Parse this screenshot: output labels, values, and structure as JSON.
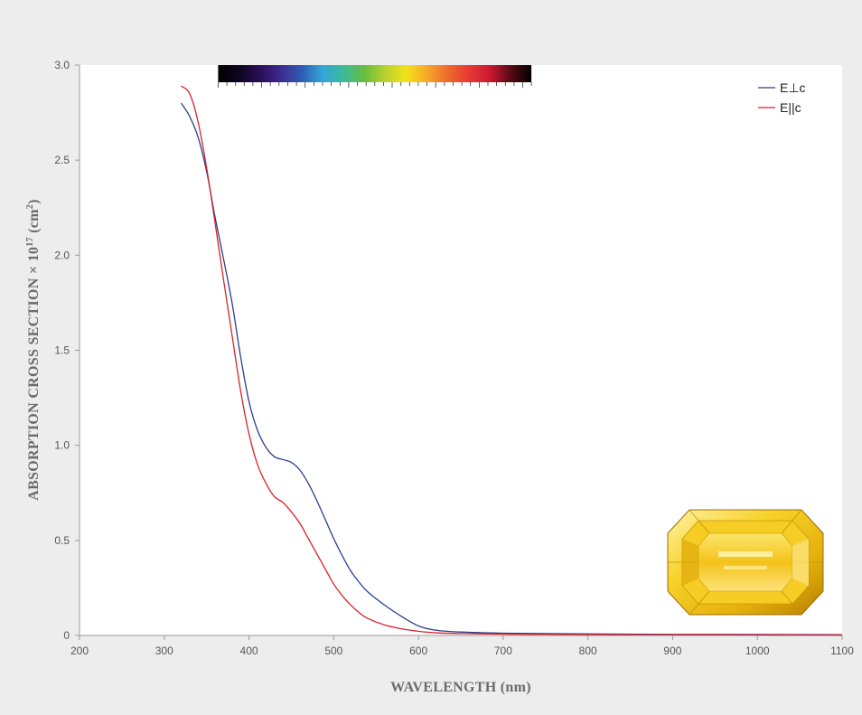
{
  "chart_data": {
    "type": "line",
    "title": "",
    "xlabel": "WAVELENGTH (nm)",
    "ylabel_prefix": "ABSORPTION CROSS SECTION × 10",
    "ylabel_exp": "17",
    "ylabel_unit_open": "  (cm",
    "ylabel_unit_exp": "2",
    "ylabel_unit_close": ")",
    "xlim": [
      200,
      1100
    ],
    "ylim": [
      0,
      3.0
    ],
    "xticks": [
      200,
      300,
      400,
      500,
      600,
      700,
      800,
      900,
      1000,
      1100
    ],
    "xtick_labels": [
      "200",
      "300",
      "400",
      "500",
      "600",
      "700",
      "800",
      "900",
      "1000",
      "1100"
    ],
    "yticks": [
      0,
      0.5,
      1.0,
      1.5,
      2.0,
      2.5,
      3.0
    ],
    "ytick_labels": [
      "0",
      "0.5",
      "1.0",
      "1.5",
      "2.0",
      "2.5",
      "3.0"
    ],
    "legend_position": "top-right",
    "series": [
      {
        "name": "E⊥c",
        "color": "#2b3f8f",
        "x": [
          320,
          330,
          340,
          350,
          360,
          370,
          380,
          390,
          400,
          410,
          420,
          430,
          440,
          450,
          460,
          470,
          480,
          490,
          500,
          510,
          520,
          530,
          540,
          560,
          580,
          600,
          620,
          650,
          700,
          750,
          800,
          900,
          1000,
          1100
        ],
        "y": [
          2.8,
          2.73,
          2.62,
          2.44,
          2.2,
          1.98,
          1.75,
          1.47,
          1.23,
          1.08,
          0.99,
          0.94,
          0.925,
          0.91,
          0.87,
          0.8,
          0.71,
          0.61,
          0.51,
          0.42,
          0.34,
          0.28,
          0.23,
          0.16,
          0.1,
          0.05,
          0.028,
          0.018,
          0.012,
          0.01,
          0.008,
          0.006,
          0.005,
          0.004
        ]
      },
      {
        "name": "E||c",
        "color": "#d9222a",
        "x": [
          320,
          330,
          340,
          350,
          360,
          370,
          380,
          390,
          400,
          410,
          420,
          430,
          440,
          450,
          460,
          470,
          480,
          490,
          500,
          510,
          520,
          530,
          540,
          560,
          580,
          600,
          620,
          650,
          700,
          750,
          800,
          900,
          1000,
          1100
        ],
        "y": [
          2.89,
          2.85,
          2.7,
          2.46,
          2.17,
          1.87,
          1.58,
          1.29,
          1.06,
          0.9,
          0.8,
          0.73,
          0.7,
          0.65,
          0.59,
          0.51,
          0.43,
          0.35,
          0.27,
          0.21,
          0.16,
          0.12,
          0.09,
          0.055,
          0.035,
          0.022,
          0.014,
          0.01,
          0.007,
          0.006,
          0.005,
          0.004,
          0.003,
          0.002
        ]
      }
    ],
    "spectrum_bar": {
      "x_range": [
        370,
        728
      ],
      "colors": [
        "#000000",
        "#0d0520",
        "#2a0e55",
        "#3d2a8f",
        "#2e5cb5",
        "#34a5d9",
        "#3bbb9a",
        "#67bd3e",
        "#b8d230",
        "#f2e21a",
        "#f6a828",
        "#ee6a2c",
        "#e63a33",
        "#cc1830",
        "#5a0a14",
        "#000000"
      ]
    },
    "gemstone": {
      "color": "#f1c40f"
    }
  }
}
